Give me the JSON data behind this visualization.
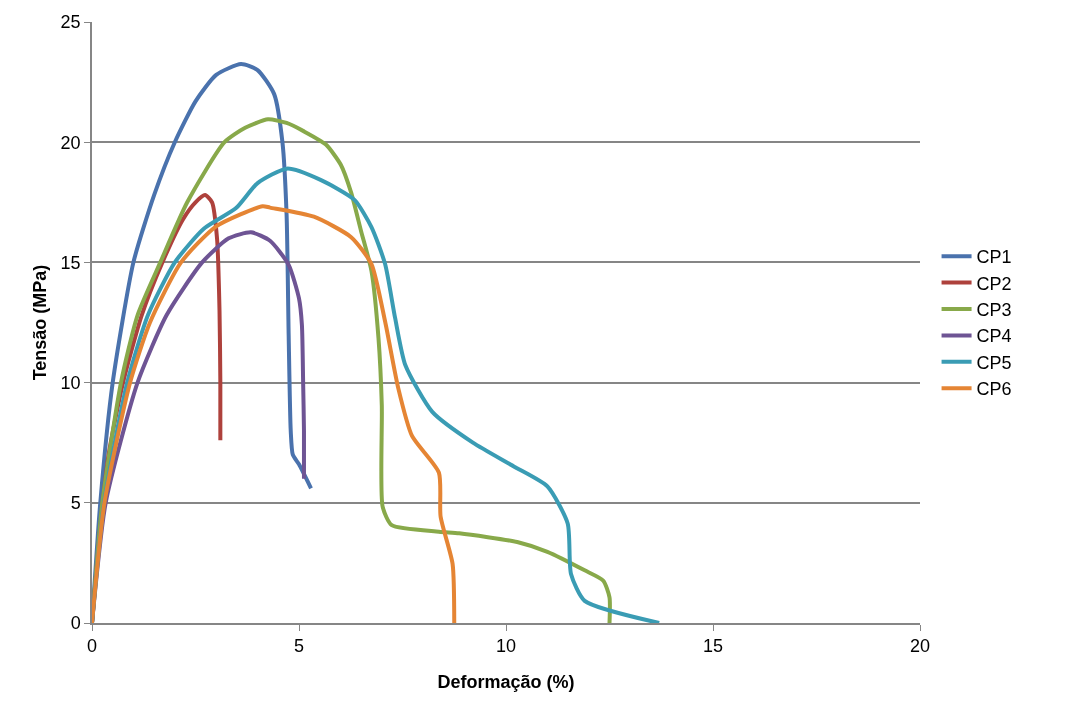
{
  "chart_data": {
    "type": "line",
    "xlabel": "Deformação (%)",
    "ylabel": "Tensão (MPa)",
    "xlim": [
      0,
      20
    ],
    "xticks": [
      0,
      5,
      10,
      15,
      20
    ],
    "ylim": [
      0,
      25
    ],
    "yticks": [
      0,
      5,
      10,
      15,
      20,
      25
    ],
    "grid": "y",
    "legend": "right",
    "marker": "none",
    "line_style": "solid",
    "series": [
      {
        "name": "CP1",
        "color": "#4a72ad",
        "x": [
          0,
          0.2,
          0.5,
          1.0,
          1.5,
          2.0,
          2.5,
          3.0,
          3.6,
          4.0,
          4.4,
          4.6,
          4.7,
          4.75,
          4.8,
          4.85,
          5.0,
          5.29
        ],
        "values": [
          0,
          5,
          10,
          15,
          17.8,
          20,
          21.7,
          22.8,
          23.25,
          23.0,
          22.0,
          20.0,
          17,
          12,
          8,
          7,
          6.6,
          5.6
        ]
      },
      {
        "name": "CP2",
        "color": "#ae413c",
        "x": [
          0,
          0.2,
          0.4,
          0.75,
          1.2,
          1.7,
          2.2,
          2.5,
          2.73,
          2.9,
          3.02,
          3.08,
          3.1,
          3.1
        ],
        "values": [
          0,
          4,
          7,
          10,
          12.8,
          15,
          16.8,
          17.5,
          17.8,
          17.5,
          16,
          13,
          10,
          7.6
        ]
      },
      {
        "name": "CP3",
        "color": "#88a94a",
        "x": [
          0,
          0.25,
          0.7,
          1.1,
          1.65,
          2.3,
          3.2,
          3.7,
          4.25,
          4.7,
          5.12,
          5.65,
          6.01,
          6.26,
          6.5,
          6.75,
          6.92,
          7.0,
          7.02,
          7.24,
          8.38,
          8.87,
          10.27,
          11.0,
          11.9,
          12.35,
          12.5,
          12.5
        ],
        "values": [
          0,
          5,
          10,
          12.8,
          15,
          17.5,
          20,
          20.6,
          20.95,
          20.8,
          20.45,
          19.9,
          19.06,
          17.9,
          16.3,
          14.65,
          11.85,
          9.04,
          4.84,
          4.07,
          3.8,
          3.73,
          3.37,
          2.96,
          2.19,
          1.76,
          1.07,
          0
        ]
      },
      {
        "name": "CP4",
        "color": "#6e5494",
        "x": [
          0,
          0.33,
          1.1,
          1.8,
          2.66,
          3.3,
          3.84,
          4.3,
          4.75,
          5.0,
          5.07,
          5.1,
          5.12,
          5.12
        ],
        "values": [
          0,
          5,
          10,
          12.8,
          15,
          16,
          16.25,
          15.9,
          14.9,
          13.5,
          12.4,
          10,
          8,
          6
        ]
      },
      {
        "name": "CP5",
        "color": "#3a9cb4",
        "x": [
          0,
          0.29,
          0.85,
          1.35,
          2.0,
          2.7,
          3.48,
          4.0,
          4.71,
          5.52,
          6.34,
          6.75,
          7.08,
          7.32,
          7.57,
          8.22,
          9.2,
          10.18,
          11.0,
          11.49,
          11.57,
          11.9,
          13.7
        ],
        "values": [
          0,
          5,
          10,
          12.8,
          15,
          16.4,
          17.26,
          18.3,
          18.9,
          18.43,
          17.6,
          16.47,
          14.93,
          12.7,
          10.72,
          8.78,
          7.5,
          6.52,
          5.68,
          4.14,
          2.04,
          0.92,
          0
        ]
      },
      {
        "name": "CP6",
        "color": "#e58534",
        "x": [
          0,
          0.3,
          0.92,
          1.4,
          2.15,
          3.0,
          4.12,
          4.3,
          5.36,
          6.26,
          6.75,
          7.08,
          7.4,
          7.73,
          8.38,
          8.42,
          8.71,
          8.75
        ],
        "values": [
          0,
          5,
          10,
          12.5,
          15,
          16.5,
          17.34,
          17.28,
          16.9,
          16.05,
          14.93,
          12.54,
          9.75,
          7.78,
          6.25,
          4.43,
          2.46,
          0
        ]
      }
    ]
  }
}
